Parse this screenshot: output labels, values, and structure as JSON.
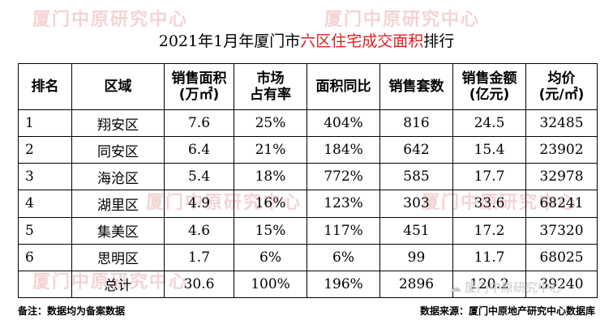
{
  "title": {
    "before": "2021年1月年厦门市",
    "highlight": "六区住宅成交面积",
    "after": "排行"
  },
  "headers": [
    "排名",
    "区域",
    "销售面积\n(万㎡)",
    "市场\n占有率",
    "面积同比",
    "销售套数",
    "销售金额\n(亿元)",
    "均价\n(元/㎡)"
  ],
  "rows": [
    [
      "1",
      "翔安区",
      "7.6",
      "25%",
      "404%",
      "816",
      "24.5",
      "32485"
    ],
    [
      "2",
      "同安区",
      "6.4",
      "21%",
      "184%",
      "642",
      "15.4",
      "23902"
    ],
    [
      "3",
      "海沧区",
      "5.4",
      "18%",
      "772%",
      "585",
      "17.7",
      "32978"
    ],
    [
      "4",
      "湖里区",
      "4.9",
      "16%",
      "123%",
      "303",
      "33.6",
      "68241"
    ],
    [
      "5",
      "集美区",
      "4.6",
      "15%",
      "117%",
      "451",
      "17.2",
      "37320"
    ],
    [
      "6",
      "思明区",
      "1.7",
      "6%",
      "6%",
      "99",
      "11.7",
      "68025"
    ]
  ],
  "total": [
    "",
    "总计",
    "30.6",
    "100%",
    "196%",
    "2896",
    "120.2",
    "39240"
  ],
  "footer": {
    "note": "备注：数据均为备案数据",
    "source": "数据来源：厦门中原地产研究中心数据库"
  },
  "brand": {
    "icon": "wechat-icon",
    "text": "厦门中原研究中心"
  },
  "colors": {
    "highlight": "#e02020",
    "watermark": "#f3d4d4"
  }
}
